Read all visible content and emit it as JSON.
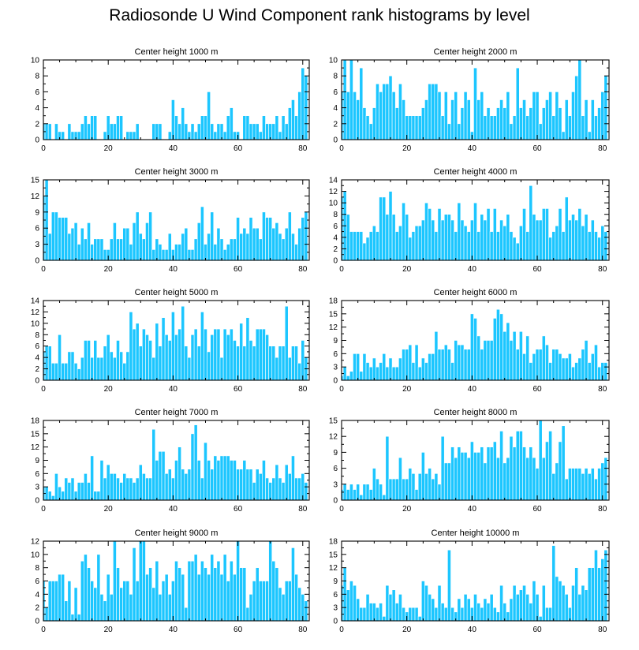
{
  "title": "Radiosonde U Wind Component rank histograms by level",
  "colors": {
    "bar": "#1cc6ff",
    "bar_edge": "#ffffff",
    "axis": "#000000"
  },
  "chart_data": [
    {
      "type": "bar",
      "title": "Center height 1000 m",
      "xlim": [
        0,
        82
      ],
      "ylim": [
        0,
        10
      ],
      "xticks": [
        0,
        20,
        40,
        60,
        80
      ],
      "yticks": [
        0,
        2,
        4,
        6,
        8,
        10
      ],
      "values": [
        2,
        2,
        2,
        0,
        2,
        1,
        1,
        0,
        2,
        1,
        1,
        1,
        2,
        3,
        2,
        3,
        3,
        0,
        0,
        1,
        3,
        2,
        2,
        3,
        3,
        0,
        1,
        1,
        1,
        2,
        0,
        0,
        0,
        0,
        2,
        2,
        2,
        0,
        0,
        1,
        5,
        3,
        2,
        4,
        2,
        1,
        2,
        1,
        2,
        3,
        3,
        6,
        2,
        1,
        2,
        2,
        1,
        3,
        4,
        1,
        1,
        0,
        3,
        3,
        2,
        2,
        2,
        1,
        3,
        2,
        2,
        2,
        3,
        1,
        3,
        2,
        4,
        5,
        3,
        6,
        9,
        8
      ]
    },
    {
      "type": "bar",
      "title": "Center height 2000 m",
      "xlim": [
        0,
        82
      ],
      "ylim": [
        0,
        10
      ],
      "xticks": [
        0,
        20,
        40,
        60,
        80
      ],
      "yticks": [
        0,
        2,
        4,
        6,
        8,
        10
      ],
      "values": [
        6,
        10,
        6,
        10,
        6,
        5,
        9,
        4,
        3,
        2,
        4,
        7,
        6,
        7,
        7,
        8,
        6,
        4,
        7,
        5,
        3,
        3,
        3,
        3,
        3,
        4,
        5,
        7,
        7,
        7,
        6,
        3,
        6,
        2,
        5,
        6,
        2,
        4,
        6,
        5,
        1,
        9,
        5,
        6,
        3,
        4,
        3,
        3,
        4,
        5,
        4,
        6,
        2,
        3,
        9,
        4,
        5,
        3,
        4,
        6,
        6,
        2,
        4,
        5,
        6,
        3,
        6,
        4,
        1,
        5,
        3,
        6,
        8,
        10,
        3,
        5,
        1,
        5,
        3,
        4,
        6,
        8
      ]
    },
    {
      "type": "bar",
      "title": "Center height 3000 m",
      "xlim": [
        0,
        82
      ],
      "ylim": [
        0,
        15
      ],
      "xticks": [
        0,
        20,
        40,
        60,
        80
      ],
      "yticks": [
        0,
        3,
        6,
        9,
        12,
        15
      ],
      "values": [
        12,
        15,
        5,
        9,
        9,
        8,
        8,
        8,
        5,
        6,
        7,
        3,
        6,
        4,
        7,
        3,
        4,
        4,
        4,
        2,
        2,
        4,
        7,
        4,
        4,
        6,
        6,
        3,
        7,
        9,
        5,
        4,
        7,
        9,
        2,
        4,
        3,
        2,
        2,
        5,
        2,
        3,
        3,
        5,
        6,
        2,
        2,
        4,
        7,
        10,
        3,
        5,
        9,
        3,
        6,
        4,
        2,
        3,
        4,
        4,
        8,
        5,
        6,
        5,
        8,
        6,
        6,
        4,
        9,
        8,
        8,
        6,
        7,
        5,
        4,
        6,
        9,
        5,
        3,
        6,
        8,
        9
      ]
    },
    {
      "type": "bar",
      "title": "Center height 4000 m",
      "xlim": [
        0,
        82
      ],
      "ylim": [
        0,
        14
      ],
      "xticks": [
        0,
        20,
        40,
        60,
        80
      ],
      "yticks": [
        0,
        2,
        4,
        6,
        8,
        10,
        12,
        14
      ],
      "values": [
        11,
        12,
        8,
        5,
        5,
        5,
        5,
        3,
        4,
        5,
        6,
        5,
        11,
        11,
        8,
        12,
        8,
        5,
        6,
        10,
        8,
        4,
        5,
        6,
        6,
        7,
        10,
        9,
        7,
        5,
        9,
        7,
        8,
        8,
        7,
        5,
        10,
        7,
        6,
        5,
        7,
        10,
        5,
        8,
        7,
        9,
        5,
        9,
        5,
        7,
        6,
        8,
        5,
        4,
        3,
        6,
        9,
        5,
        13,
        8,
        7,
        7,
        9,
        9,
        4,
        5,
        6,
        9,
        5,
        11,
        7,
        8,
        7,
        9,
        6,
        8,
        5,
        7,
        5,
        4,
        6,
        5
      ]
    },
    {
      "type": "bar",
      "title": "Center height 5000 m",
      "xlim": [
        0,
        82
      ],
      "ylim": [
        0,
        14
      ],
      "xticks": [
        0,
        20,
        40,
        60,
        80
      ],
      "yticks": [
        0,
        2,
        4,
        6,
        8,
        10,
        12,
        14
      ],
      "values": [
        5,
        6,
        6,
        3,
        3,
        8,
        3,
        3,
        5,
        5,
        3,
        2,
        4,
        7,
        7,
        4,
        7,
        4,
        4,
        6,
        8,
        5,
        4,
        7,
        5,
        3,
        5,
        12,
        9,
        10,
        6,
        9,
        8,
        7,
        4,
        10,
        6,
        11,
        8,
        7,
        12,
        8,
        9,
        13,
        6,
        4,
        8,
        9,
        6,
        12,
        9,
        5,
        8,
        9,
        9,
        4,
        9,
        8,
        9,
        7,
        6,
        10,
        6,
        11,
        7,
        6,
        9,
        9,
        9,
        8,
        6,
        6,
        4,
        6,
        6,
        13,
        4,
        6,
        6,
        3,
        7,
        4
      ]
    },
    {
      "type": "bar",
      "title": "Center height 6000 m",
      "xlim": [
        0,
        82
      ],
      "ylim": [
        0,
        18
      ],
      "xticks": [
        0,
        20,
        40,
        60,
        80
      ],
      "yticks": [
        0,
        3,
        6,
        9,
        12,
        15,
        18
      ],
      "values": [
        1,
        3,
        1,
        2,
        6,
        6,
        2,
        6,
        4,
        3,
        5,
        3,
        4,
        6,
        3,
        5,
        3,
        3,
        5,
        7,
        7,
        8,
        4,
        8,
        3,
        5,
        4,
        6,
        6,
        11,
        7,
        7,
        8,
        7,
        4,
        9,
        8,
        8,
        7,
        7,
        15,
        14,
        10,
        7,
        9,
        9,
        9,
        14,
        16,
        15,
        11,
        13,
        9,
        11,
        7,
        11,
        6,
        10,
        4,
        6,
        7,
        7,
        10,
        8,
        4,
        7,
        7,
        6,
        5,
        5,
        6,
        3,
        4,
        5,
        7,
        9,
        4,
        6,
        8,
        3,
        4,
        4
      ]
    },
    {
      "type": "bar",
      "title": "Center height 7000 m",
      "xlim": [
        0,
        82
      ],
      "ylim": [
        0,
        18
      ],
      "xticks": [
        0,
        20,
        40,
        60,
        80
      ],
      "yticks": [
        0,
        3,
        6,
        9,
        12,
        15,
        18
      ],
      "values": [
        3,
        3,
        2,
        1,
        6,
        3,
        2,
        5,
        4,
        5,
        2,
        4,
        4,
        6,
        4,
        10,
        2,
        2,
        9,
        5,
        8,
        6,
        6,
        5,
        4,
        6,
        5,
        5,
        4,
        5,
        8,
        6,
        5,
        5,
        16,
        9,
        11,
        11,
        6,
        7,
        5,
        9,
        12,
        7,
        6,
        7,
        15,
        17,
        9,
        5,
        13,
        9,
        7,
        10,
        9,
        10,
        10,
        10,
        9,
        9,
        7,
        7,
        9,
        7,
        7,
        4,
        7,
        6,
        9,
        5,
        4,
        5,
        8,
        5,
        4,
        8,
        6,
        10,
        5,
        5,
        6,
        4
      ]
    },
    {
      "type": "bar",
      "title": "Center height 8000 m",
      "xlim": [
        0,
        82
      ],
      "ylim": [
        0,
        15
      ],
      "xticks": [
        0,
        20,
        40,
        60,
        80
      ],
      "yticks": [
        0,
        3,
        6,
        9,
        12,
        15
      ],
      "values": [
        2,
        3,
        2,
        3,
        2,
        3,
        1,
        3,
        3,
        2,
        6,
        4,
        3,
        1,
        12,
        4,
        4,
        4,
        8,
        4,
        4,
        6,
        5,
        2,
        5,
        9,
        5,
        6,
        4,
        5,
        3,
        12,
        7,
        7,
        10,
        8,
        10,
        9,
        9,
        8,
        11,
        9,
        9,
        10,
        7,
        10,
        10,
        11,
        8,
        13,
        7,
        8,
        12,
        10,
        13,
        13,
        10,
        8,
        10,
        8,
        6,
        15,
        8,
        11,
        13,
        5,
        7,
        11,
        14,
        4,
        6,
        6,
        6,
        6,
        5,
        6,
        5,
        6,
        4,
        6,
        7,
        8
      ]
    },
    {
      "type": "bar",
      "title": "Center height 9000 m",
      "xlim": [
        0,
        82
      ],
      "ylim": [
        0,
        12
      ],
      "xticks": [
        0,
        20,
        40,
        60,
        80
      ],
      "yticks": [
        0,
        2,
        4,
        6,
        8,
        10,
        12
      ],
      "values": [
        6,
        2,
        6,
        6,
        6,
        7,
        7,
        3,
        6,
        1,
        5,
        1,
        9,
        10,
        8,
        6,
        5,
        10,
        4,
        3,
        7,
        4,
        12,
        8,
        5,
        6,
        6,
        4,
        11,
        6,
        12,
        12,
        7,
        8,
        5,
        9,
        4,
        6,
        7,
        4,
        6,
        9,
        8,
        7,
        2,
        9,
        9,
        10,
        7,
        9,
        8,
        7,
        10,
        8,
        9,
        7,
        10,
        6,
        9,
        7,
        12,
        8,
        8,
        2,
        4,
        6,
        8,
        6,
        6,
        6,
        12,
        9,
        8,
        5,
        4,
        6,
        6,
        11,
        7,
        5,
        4,
        3
      ]
    },
    {
      "type": "bar",
      "title": "Center height 10000 m",
      "xlim": [
        0,
        82
      ],
      "ylim": [
        0,
        18
      ],
      "xticks": [
        0,
        20,
        40,
        60,
        80
      ],
      "yticks": [
        0,
        3,
        6,
        9,
        12,
        15,
        18
      ],
      "values": [
        8,
        12,
        7,
        9,
        8,
        5,
        3,
        3,
        6,
        4,
        4,
        3,
        4,
        1,
        8,
        6,
        7,
        4,
        6,
        3,
        2,
        3,
        3,
        3,
        1,
        9,
        8,
        6,
        5,
        3,
        8,
        4,
        3,
        16,
        3,
        2,
        5,
        3,
        6,
        5,
        3,
        6,
        4,
        3,
        5,
        4,
        6,
        3,
        2,
        8,
        4,
        2,
        5,
        8,
        6,
        7,
        8,
        6,
        4,
        9,
        6,
        1,
        8,
        3,
        3,
        17,
        10,
        9,
        8,
        6,
        3,
        8,
        12,
        6,
        8,
        7,
        12,
        12,
        16,
        12,
        14,
        16
      ]
    }
  ]
}
